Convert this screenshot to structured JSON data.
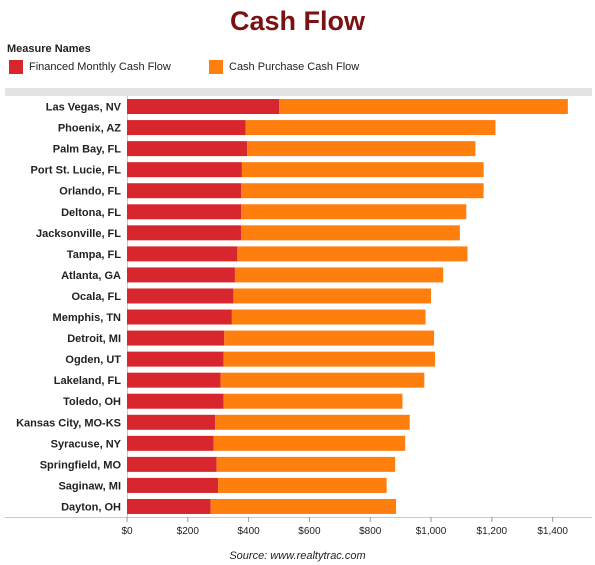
{
  "chart_data": {
    "type": "bar",
    "orientation": "horizontal",
    "stacked": true,
    "title": "Cash Flow",
    "legend_title": "Measure Names",
    "legend_placement": "top-left",
    "categories": [
      "Las Vegas, NV",
      "Phoenix, AZ",
      "Palm Bay, FL",
      "Port St. Lucie, FL",
      "Orlando, FL",
      "Deltona, FL",
      "Jacksonville, FL",
      "Tampa, FL",
      "Atlanta, GA",
      "Ocala, FL",
      "Memphis, TN",
      "Detroit, MI",
      "Ogden, UT",
      "Lakeland, FL",
      "Toledo, OH",
      "Kansas City, MO-KS",
      "Syracuse, NY",
      "Springfield, MO",
      "Saginaw, MI",
      "Dayton, OH"
    ],
    "series": [
      {
        "name": "Financed Monthly Cash Flow",
        "color": "#d8262e",
        "values": [
          500,
          390,
          395,
          378,
          376,
          376,
          375,
          363,
          355,
          350,
          345,
          320,
          318,
          308,
          318,
          290,
          285,
          295,
          300,
          275
        ]
      },
      {
        "name": "Cash Purchase Cash Flow",
        "color": "#ff7f0e",
        "values": [
          950,
          822,
          751,
          795,
          797,
          740,
          720,
          757,
          685,
          650,
          637,
          690,
          695,
          670,
          588,
          640,
          630,
          587,
          554,
          610
        ]
      }
    ],
    "xlim": [
      0,
      1490
    ],
    "xticks": [
      0,
      200,
      400,
      600,
      800,
      1000,
      1200,
      1400
    ],
    "xtick_labels": [
      "$0",
      "$200",
      "$400",
      "$600",
      "$800",
      "$1,000",
      "$1,200",
      "$1,400"
    ],
    "grid": false
  },
  "source": "Source: www.realtytrac.com"
}
